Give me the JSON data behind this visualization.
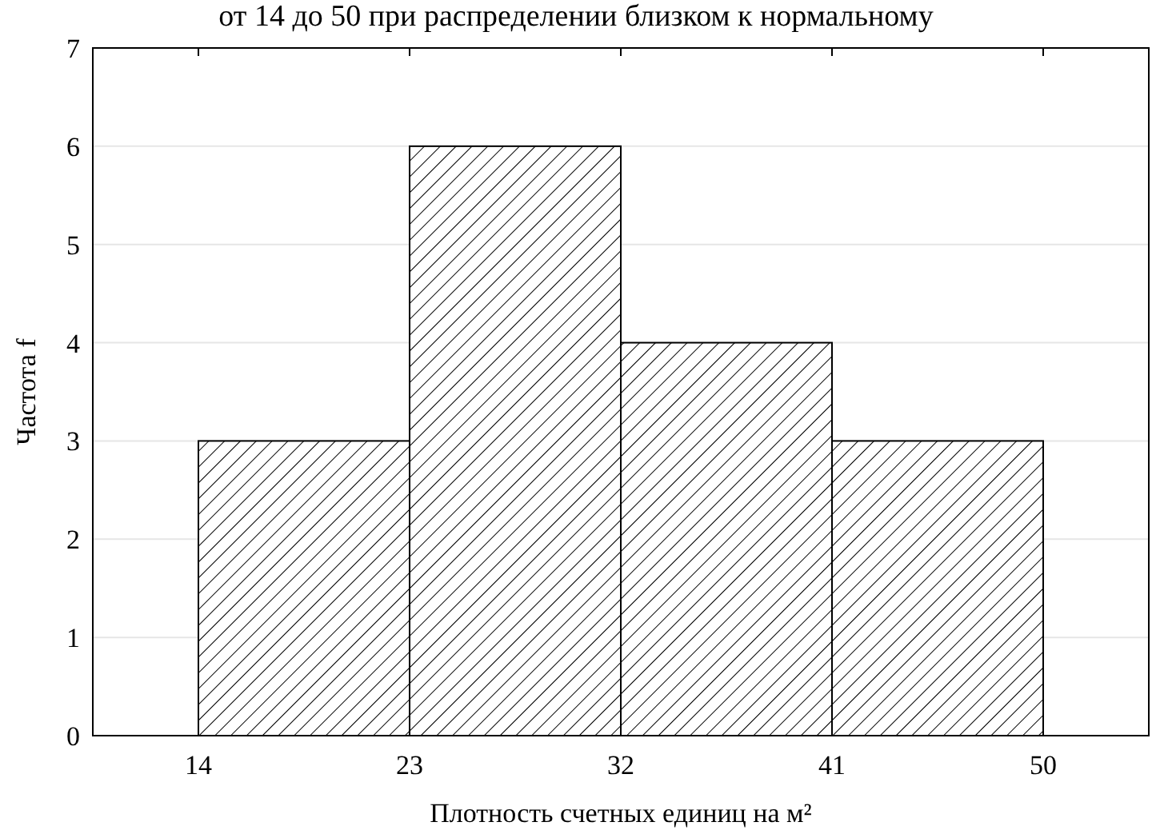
{
  "chart_data": {
    "type": "histogram",
    "title": "от 14 до 50 при распределении близком к нормальному",
    "xlabel": "Плотность счетных единиц на м²",
    "ylabel": "Частота f",
    "bins": [
      14,
      23,
      32,
      41,
      50
    ],
    "values": [
      3,
      6,
      4,
      3
    ],
    "color": "#000000",
    "xlim": [
      9.5,
      54.5
    ],
    "xticks": [
      14,
      23,
      32,
      41,
      50
    ],
    "ylim": [
      0,
      7
    ],
    "yticks": [
      0,
      1,
      2,
      3,
      4,
      5,
      6,
      7
    ],
    "grid": "y"
  }
}
